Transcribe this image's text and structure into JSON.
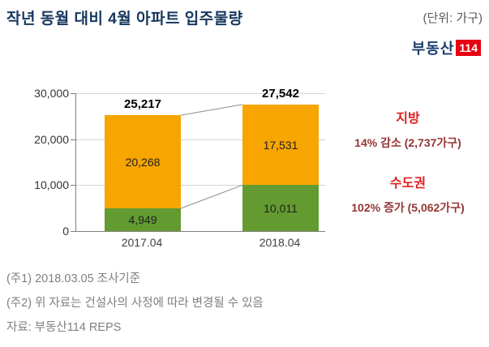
{
  "header": {
    "title": "작년 동월 대비 4월 아파트 입주물량",
    "unit": "(단위: 가구)",
    "logo_text": "부동산",
    "logo_badge": "114"
  },
  "chart_data": {
    "type": "bar",
    "stacked": true,
    "title": "작년 동월 대비 4월 아파트 입주물량",
    "unit_label": "(단위: 가구)",
    "categories": [
      "2017.04",
      "2018.04"
    ],
    "series": [
      {
        "name": "수도권",
        "color": "#639b31",
        "values": [
          4949,
          10011
        ],
        "labels": [
          "4,949",
          "10,011"
        ]
      },
      {
        "name": "지방",
        "color": "#f7a500",
        "values": [
          20268,
          17531
        ],
        "labels": [
          "20,268",
          "17,531"
        ]
      }
    ],
    "totals": [
      25217,
      27542
    ],
    "total_labels": [
      "25,217",
      "27,542"
    ],
    "ylim": [
      0,
      30000
    ],
    "yticks": [
      "30,000",
      "20,000",
      "10,000",
      "0"
    ],
    "grid": true,
    "legend": false
  },
  "annotations": [
    {
      "name": "지방",
      "detail": "14% 감소 (2,737가구)"
    },
    {
      "name": "수도권",
      "detail": "102% 증가 (5,062가구)"
    }
  ],
  "footnotes": [
    "(주1) 2018.03.05 조사기준",
    "(주2) 위 자료는 건설사의 사정에 따라 변경될 수 있음",
    "자료: 부동산114 REPS"
  ],
  "colors": {
    "accent_red": "#e01f1f",
    "detail_red": "#943634",
    "title_navy": "#17375e",
    "logo_red": "#e60012",
    "bar_orange": "#f7a500",
    "bar_green": "#639b31"
  }
}
